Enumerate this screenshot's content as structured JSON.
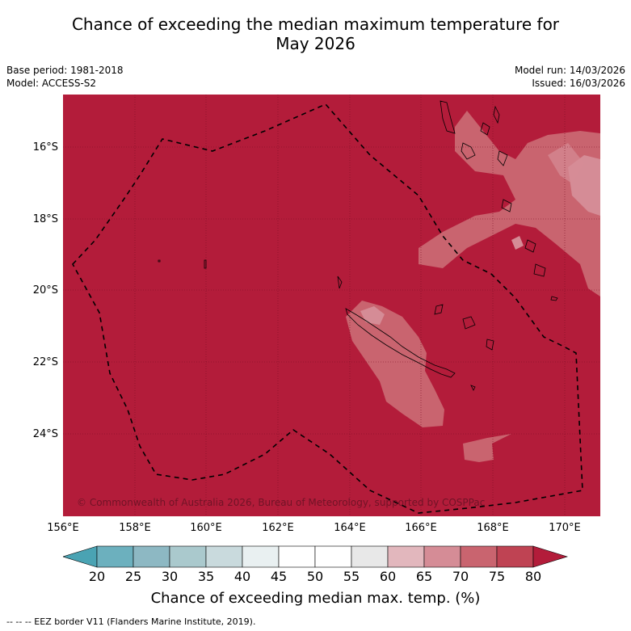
{
  "title_line1": "Chance of exceeding the median maximum temperature for",
  "title_line2": "May 2026",
  "base_period": "Base period: 1981-2018",
  "model": "Model: ACCESS-S2",
  "model_run": "Model run: 14/03/2026",
  "issued": "Issued: 16/03/2026",
  "copyright": "© Commonwealth of Australia 2026, Bureau of Meteorology, supported by COSPPac",
  "lat_labels": [
    "16°S",
    "18°S",
    "20°S",
    "22°S",
    "24°S"
  ],
  "lon_labels": [
    "156°E",
    "158°E",
    "160°E",
    "162°E",
    "164°E",
    "166°E",
    "168°E",
    "170°E"
  ],
  "colorbar": {
    "ticks": [
      "20",
      "25",
      "30",
      "35",
      "40",
      "45",
      "50",
      "55",
      "60",
      "65",
      "70",
      "75",
      "80"
    ],
    "colors": [
      "#4aa3b3",
      "#6cb0be",
      "#8db8c3",
      "#aac9cd",
      "#c9dadd",
      "#e9f0f1",
      "#ffffff",
      "#ffffff",
      "#e8e8e8",
      "#e2b7bd",
      "#d58c96",
      "#c9646f",
      "#bf4353",
      "#b31c3a"
    ],
    "title": "Chance of exceeding median max. temp. (%)"
  },
  "footnote": "--  --  -- EEZ border V11 (Flanders Marine Institute, 2019).",
  "colors": {
    "background_high": "#b31c3a",
    "level_65": "#c9646f",
    "level_70": "#d58c96",
    "eez": "#000000"
  }
}
